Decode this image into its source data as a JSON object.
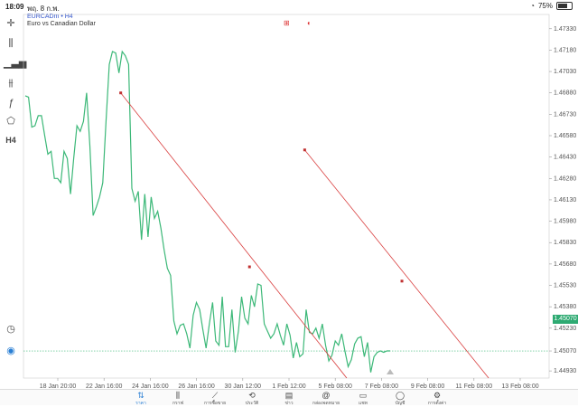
{
  "status": {
    "time": "18:09",
    "date": "พฤ. 8 ก.พ.",
    "battery": "75%"
  },
  "symbol": {
    "name": "EURCADm • H4",
    "description": "Euro vs Canadian Dollar"
  },
  "current_price": "1.45070",
  "toolbar": [
    "crosshair-icon",
    "candles-icon",
    "bars-icon",
    "indicators-icon",
    "function-icon",
    "shapes-icon"
  ],
  "timeframe": "H4",
  "chart_data": {
    "type": "line",
    "y_ticks": [
      "1.47330",
      "1.47180",
      "1.47030",
      "1.46880",
      "1.46730",
      "1.46580",
      "1.46430",
      "1.46280",
      "1.46130",
      "1.45980",
      "1.45830",
      "1.45680",
      "1.45530",
      "1.45380",
      "1.45230",
      "1.45070",
      "1.44930"
    ],
    "x_ticks": [
      "18 Jan 20:00",
      "22 Jan 16:00",
      "24 Jan 16:00",
      "26 Jan 16:00",
      "30 Jan 12:00",
      "1 Feb 12:00",
      "5 Feb 08:00",
      "7 Feb 08:00",
      "9 Feb 08:00",
      "11 Feb 08:00",
      "13 Feb 08:00"
    ],
    "ylim": [
      1.4488,
      1.4743
    ],
    "series_color": "#3cb878",
    "series": [
      {
        "values": [
          1.4686,
          1.4685,
          1.4664,
          1.4665,
          1.4672,
          1.4672,
          1.4658,
          1.4645,
          1.4647,
          1.4628,
          1.4628,
          1.4625,
          1.4647,
          1.4642,
          1.4617,
          1.4642,
          1.4665,
          1.4661,
          1.4668,
          1.4688,
          1.4651,
          1.4602,
          1.4608,
          1.4615,
          1.4625,
          1.4668,
          1.4708,
          1.4717,
          1.4716,
          1.4702,
          1.4717,
          1.4714,
          1.4708,
          1.4621,
          1.4612,
          1.4619,
          1.4585,
          1.4617,
          1.4587,
          1.4615,
          1.46,
          1.4605,
          1.4593,
          1.4578,
          1.4565,
          1.456,
          1.4528,
          1.4519,
          1.4525,
          1.4526,
          1.4519,
          1.4509,
          1.4532,
          1.4541,
          1.4536,
          1.4522,
          1.4509,
          1.4526,
          1.4541,
          1.4514,
          1.4511,
          1.4545,
          1.451,
          1.451,
          1.4536,
          1.4506,
          1.4521,
          1.4545,
          1.453,
          1.4526,
          1.4546,
          1.4538,
          1.4554,
          1.4553,
          1.4526,
          1.4521,
          1.4516,
          1.4519,
          1.4526,
          1.4518,
          1.4511,
          1.4526,
          1.4518,
          1.4502,
          1.4513,
          1.4503,
          1.4505,
          1.4536,
          1.452,
          1.4519,
          1.4523,
          1.4516,
          1.4526,
          1.4511,
          1.45,
          1.4504,
          1.4514,
          1.4511,
          1.4519,
          1.4507,
          1.4496,
          1.4501,
          1.4512,
          1.4516,
          1.4517,
          1.4503,
          1.4513,
          1.4492,
          1.4503,
          1.4506,
          1.4507,
          1.4506,
          1.4507,
          1.4507
        ]
      }
    ],
    "trendlines": [
      {
        "from": [
          0.185,
          1.4688
        ],
        "mid": [
          0.43,
          1.4566
        ],
        "to": [
          0.615,
          1.4476
        ]
      },
      {
        "from": [
          0.535,
          1.4648
        ],
        "mid": [
          0.72,
          1.4556
        ],
        "to": [
          0.885,
          1.4476
        ]
      }
    ],
    "grid": true
  },
  "nav": [
    {
      "label": "ราคา",
      "icon": "quotes-icon",
      "active": true
    },
    {
      "label": "กราฟ",
      "icon": "chart-icon",
      "active": false
    },
    {
      "label": "การซื้อขาย",
      "icon": "trade-icon",
      "active": false
    },
    {
      "label": "ประวัติ",
      "icon": "history-icon",
      "active": false
    },
    {
      "label": "ข่าว",
      "icon": "news-icon",
      "active": false
    },
    {
      "label": "กล่องจดหมาย",
      "icon": "mail-icon",
      "active": false
    },
    {
      "label": "แชท",
      "icon": "chat-icon",
      "active": false
    },
    {
      "label": "บัญชี",
      "icon": "account-icon",
      "active": false
    },
    {
      "label": "การตั้งค่า",
      "icon": "settings-icon",
      "active": false
    }
  ]
}
